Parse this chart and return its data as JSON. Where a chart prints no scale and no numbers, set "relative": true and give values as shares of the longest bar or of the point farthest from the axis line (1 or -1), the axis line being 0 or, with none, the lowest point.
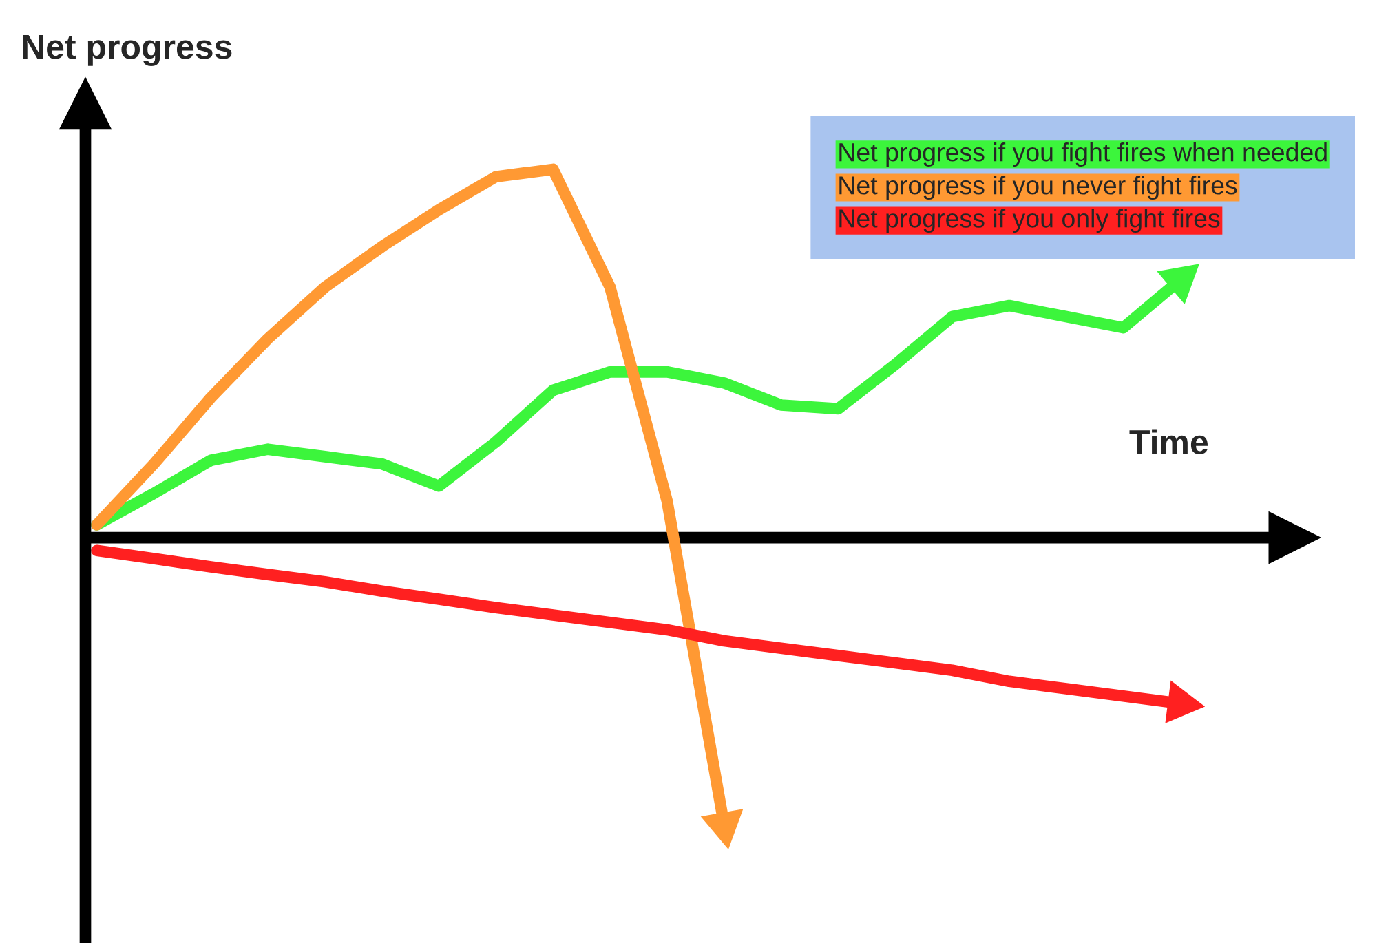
{
  "chart_data": {
    "type": "line",
    "relative": true,
    "xlabel": "Time",
    "ylabel": "Net progress",
    "legend": "top right",
    "categories": [
      null,
      null,
      null,
      null,
      null,
      null,
      null,
      null,
      null,
      null,
      null,
      null,
      null,
      null,
      null,
      null,
      null,
      null,
      null,
      null
    ],
    "series": [
      {
        "name": "Net progress if you fight fires when needed",
        "color": "#3cf53c",
        "values": [
          0.035,
          0.12,
          0.21,
          0.24,
          0.22,
          0.2,
          0.14,
          0.26,
          0.4,
          0.45,
          0.45,
          0.42,
          0.36,
          0.35,
          0.47,
          0.6,
          0.63,
          0.6,
          0.57,
          0.7
        ]
      },
      {
        "name": "Net progress if you never fight fires",
        "color": "#ff9933",
        "values": [
          0.035,
          0.2,
          0.38,
          0.54,
          0.68,
          0.79,
          0.89,
          0.98,
          1.0,
          0.68,
          0.1,
          -0.78,
          null,
          null,
          null,
          null,
          null,
          null,
          null,
          null
        ]
      },
      {
        "name": "Net progress if you only fight fires",
        "color": "#ff2020",
        "values": [
          -0.035,
          -0.057,
          -0.079,
          -0.1,
          -0.12,
          -0.145,
          -0.167,
          -0.19,
          -0.21,
          -0.23,
          -0.25,
          -0.28,
          -0.3,
          -0.32,
          -0.34,
          -0.36,
          -0.39,
          -0.41,
          -0.43,
          -0.45
        ]
      }
    ]
  }
}
